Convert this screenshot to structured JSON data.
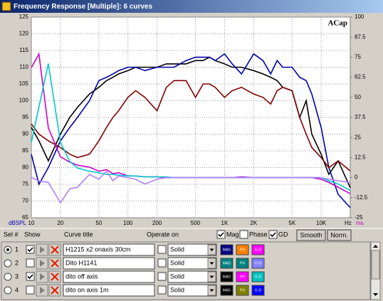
{
  "window": {
    "title": "Frequency Response [Multiple]: 6 curves"
  },
  "chart_data": {
    "type": "line",
    "annotation": "ACap",
    "xlabel": "Hz",
    "ylabel": "dBSPL",
    "y2label": "ms",
    "xlog": true,
    "grid": true,
    "xlim": [
      10,
      20000
    ],
    "ylim": [
      65,
      125
    ],
    "y2lim": [
      -25,
      100
    ],
    "xticks": [
      10,
      20,
      50,
      100,
      200,
      500,
      {
        "value": 1000,
        "label": "1K"
      },
      {
        "value": 2000,
        "label": "2K"
      },
      {
        "value": 5000,
        "label": "5K"
      },
      {
        "value": 10000,
        "label": "10K"
      }
    ],
    "yticks": [
      65,
      70,
      75,
      80,
      85,
      90,
      95,
      100,
      105,
      110,
      115,
      120,
      125
    ],
    "y2ticks": [
      -25,
      -12.5,
      0,
      12.5,
      25,
      37.5,
      50,
      62.5,
      75,
      87.5,
      100
    ],
    "x": [
      10,
      12,
      15,
      20,
      25,
      30,
      40,
      50,
      60,
      70,
      80,
      100,
      120,
      150,
      200,
      250,
      300,
      400,
      500,
      600,
      700,
      800,
      1000,
      1200,
      1500,
      2000,
      2500,
      3000,
      3500,
      4000,
      5000,
      6000,
      7000,
      8000,
      10000,
      12000,
      15000,
      20000
    ],
    "series": [
      {
        "color": "#000000",
        "values": [
          92,
          88,
          82,
          90,
          95,
          98,
          102,
          104,
          106,
          107,
          108,
          109,
          110,
          110,
          110,
          111,
          111,
          111,
          112,
          112,
          113,
          112,
          111,
          110,
          110,
          109,
          108,
          107,
          106,
          104,
          103,
          95,
          100,
          90,
          84,
          78,
          82,
          74
        ]
      },
      {
        "color": "#0000a8",
        "values": [
          84,
          75,
          80,
          88,
          92,
          95,
          100,
          106,
          107,
          108,
          109,
          110,
          110,
          109,
          110,
          110,
          110,
          112,
          113,
          113,
          113,
          112,
          114,
          111,
          108,
          114,
          112,
          108,
          112,
          110,
          110,
          107,
          106,
          102,
          92,
          80,
          72,
          68
        ]
      },
      {
        "color": "#800000",
        "values": [
          93,
          90,
          88,
          86,
          84,
          83,
          84,
          88,
          92,
          95,
          97,
          101,
          103,
          101,
          97,
          104,
          106,
          106,
          101,
          105,
          105,
          104,
          101,
          103,
          104,
          102,
          101,
          99,
          103,
          104,
          103,
          95,
          90,
          86,
          83,
          80,
          82,
          79
        ]
      },
      {
        "color": "#cc00cc",
        "axis": "y2",
        "values": [
          68.5,
          77,
          31,
          13,
          9.6,
          7.8,
          6.5,
          4,
          5,
          2.5,
          3,
          1.1,
          1,
          0.5,
          0.5,
          0,
          0,
          0,
          0,
          0,
          0,
          0,
          0,
          0,
          0.5,
          0,
          0,
          0,
          0,
          0,
          0,
          0,
          0,
          0,
          -1,
          -3,
          -6,
          -10
        ]
      },
      {
        "color": "#00c8c8",
        "axis": "y2",
        "values": [
          22,
          44,
          71,
          22,
          10,
          6,
          4,
          3,
          2,
          2,
          1.5,
          1,
          1,
          0.5,
          0.5,
          0.5,
          0,
          0,
          0,
          0,
          0,
          0,
          0,
          0,
          0,
          0,
          0,
          0,
          0,
          0,
          0,
          0,
          0,
          0,
          0,
          -2,
          -4,
          -8
        ]
      },
      {
        "color": "#b080ff",
        "axis": "y2",
        "values": [
          0,
          -2,
          -3,
          -15.7,
          -7,
          -6,
          2,
          -1,
          4,
          -2,
          1,
          0,
          -1,
          -4,
          -1,
          0,
          0,
          0,
          0,
          0,
          0,
          0,
          0,
          0,
          0,
          0,
          0,
          0,
          0,
          0,
          0,
          0,
          0,
          0,
          0,
          -1,
          -2,
          -3
        ]
      }
    ]
  },
  "panel": {
    "headers": {
      "sel": "Sel #",
      "show": "Show",
      "title": "Curve title",
      "operate": "Operate on"
    },
    "toggles": [
      {
        "label": "Mag",
        "checked": true
      },
      {
        "label": "Phase",
        "checked": false
      },
      {
        "label": "GD",
        "checked": true
      }
    ],
    "buttons": [
      "Smooth",
      "Norm."
    ],
    "row_buttons": [
      "MAG",
      "PH",
      "G-D"
    ],
    "rows": [
      {
        "number": 1,
        "selected": true,
        "show": true,
        "title": "H1215 x2 onaxis 30cm",
        "style": "Solid",
        "colors": [
          "#000080",
          "#ff8000",
          "#ff00ff"
        ]
      },
      {
        "number": 2,
        "selected": false,
        "show": false,
        "title": "Dito H1141",
        "style": "Solid",
        "colors": [
          "#008080",
          "#008080",
          "#8080ff"
        ]
      },
      {
        "number": 3,
        "selected": false,
        "show": true,
        "title": "dito off axis",
        "style": "Solid",
        "colors": [
          "#000000",
          "#ff00ff",
          "#00c0c0"
        ]
      },
      {
        "number": 4,
        "selected": false,
        "show": false,
        "title": "dito on axis 1m",
        "style": "Solid",
        "colors": [
          "#000000",
          "#808000",
          "#0000ff"
        ]
      }
    ]
  }
}
